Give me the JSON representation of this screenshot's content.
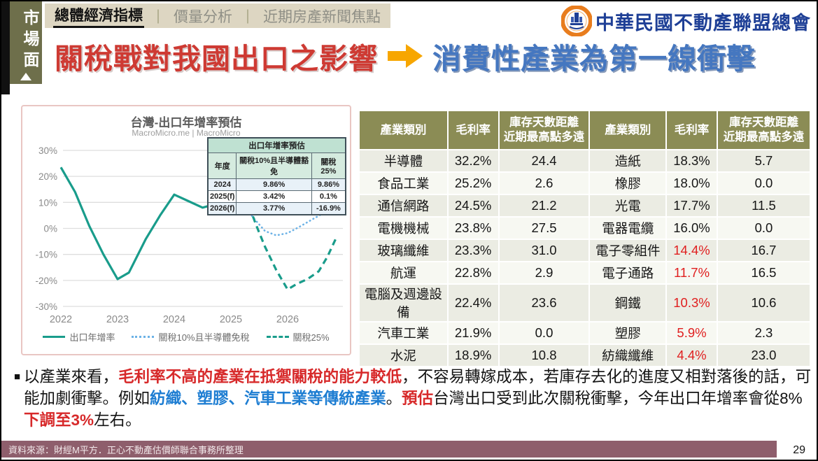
{
  "tab": {
    "label": "市場面"
  },
  "nav": {
    "separator": "｜",
    "items": [
      {
        "label": "總體經濟指標",
        "active": true
      },
      {
        "label": "價量分析",
        "active": false
      },
      {
        "label": "近期房產新聞焦點",
        "active": false
      }
    ]
  },
  "logo": {
    "org_name": "中華民國不動產聯盟總會"
  },
  "headline": {
    "left": "關稅戰對我國出口之影響",
    "right": "消費性產業為第一線衝擊"
  },
  "chart_data": {
    "type": "line",
    "title": "台灣-出口年增率預估",
    "subtitle": "MacroMicro.me | MacroMicro",
    "ylim": [
      -33,
      33
    ],
    "yticks": [
      30,
      20,
      10,
      0,
      -10,
      -20,
      -30
    ],
    "ytick_suffix": "%",
    "xticks": [
      2022,
      2023,
      2024,
      2025,
      2026
    ],
    "grid": true,
    "legend_position": "bottom",
    "series": [
      {
        "name": "出口年增率",
        "style": "solid",
        "color": "#199c8b",
        "x": [
          2022.0,
          2022.25,
          2022.5,
          2022.75,
          2023.0,
          2023.2,
          2023.5,
          2023.75,
          2024.0,
          2024.25,
          2024.5,
          2024.75,
          2025.0,
          2025.2
        ],
        "y": [
          23.5,
          14,
          1,
          -10,
          -19.5,
          -17,
          -4,
          5,
          13,
          10.5,
          8,
          9.5,
          10.5,
          10
        ]
      },
      {
        "name": "關稅10%且半導體免稅",
        "style": "dotted",
        "color": "#6cb2e6",
        "x": [
          2025.2,
          2025.4,
          2025.6,
          2025.8,
          2026.0,
          2026.2,
          2026.4,
          2026.6,
          2026.85
        ],
        "y": [
          9.5,
          4,
          -1,
          -2.7,
          -1.8,
          0.5,
          3,
          5.5,
          7
        ]
      },
      {
        "name": "關稅25%",
        "style": "dashed",
        "color": "#199c8b",
        "x": [
          2025.0,
          2025.15,
          2025.3,
          2025.45,
          2025.6,
          2025.8,
          2026.0,
          2026.15,
          2026.35,
          2026.55,
          2026.7,
          2026.85
        ],
        "y": [
          10.5,
          10.3,
          9.8,
          1,
          -7,
          -16,
          -23.5,
          -21.5,
          -19.5,
          -16.5,
          -11,
          -4
        ]
      }
    ],
    "annotation_table": {
      "title": "出口年增率預估",
      "headers": [
        "年度",
        "關稅10%且半導體豁免",
        "關稅25%"
      ],
      "rows": [
        [
          "2024",
          "9.86%",
          "9.86%"
        ],
        [
          "2025(f)",
          "3.42%",
          "0.1%"
        ],
        [
          "2026(f)",
          "3.77%",
          "-16.9%"
        ]
      ]
    }
  },
  "industry_table": {
    "headers": [
      "產業類別",
      "毛利率",
      "庫存天數距離\n近期最高點多遠",
      "產業類別",
      "毛利率",
      "庫存天數距離\n近期最高點多遠"
    ],
    "rows": [
      {
        "cells": [
          "半導體",
          "32.2%",
          "24.4",
          "造紙",
          "18.3%",
          "5.7"
        ],
        "red": []
      },
      {
        "cells": [
          "食品工業",
          "25.2%",
          "2.6",
          "橡膠",
          "18.0%",
          "0.0"
        ],
        "red": []
      },
      {
        "cells": [
          "通信網路",
          "24.5%",
          "21.2",
          "光電",
          "17.7%",
          "11.5"
        ],
        "red": []
      },
      {
        "cells": [
          "電機機械",
          "23.8%",
          "27.5",
          "電器電纜",
          "16.0%",
          "0.0"
        ],
        "red": []
      },
      {
        "cells": [
          "玻璃纖維",
          "23.3%",
          "31.0",
          "電子零組件",
          "14.4%",
          "16.7"
        ],
        "red": [
          4
        ]
      },
      {
        "cells": [
          "航運",
          "22.8%",
          "2.9",
          "電子通路",
          "11.7%",
          "16.5"
        ],
        "red": [
          4
        ]
      },
      {
        "cells": [
          "電腦及週邊設備",
          "22.4%",
          "23.6",
          "鋼鐵",
          "10.3%",
          "10.6"
        ],
        "red": [
          4
        ]
      },
      {
        "cells": [
          "汽車工業",
          "21.9%",
          "0.0",
          "塑膠",
          "5.9%",
          "2.3"
        ],
        "red": [
          4
        ]
      },
      {
        "cells": [
          "水泥",
          "18.9%",
          "10.8",
          "紡織纖維",
          "4.4%",
          "23.0"
        ],
        "red": [
          4
        ]
      }
    ]
  },
  "analysis": {
    "bullet": "■",
    "segments": [
      {
        "text": "以產業來看，",
        "style": "normal"
      },
      {
        "text": "毛利率不高的產業在抵禦關稅的能力較低",
        "style": "red"
      },
      {
        "text": "，不容易轉嫁成本，若庫存去化的進度又相對落後的話，可能加劇衝擊。例如",
        "style": "normal"
      },
      {
        "text": "紡織、塑膠、汽車工業等傳統產業",
        "style": "blue"
      },
      {
        "text": "。",
        "style": "normal"
      },
      {
        "text": "預估",
        "style": "red"
      },
      {
        "text": "台灣出口受到此次關稅衝擊，今年出口年增率會從8%",
        "style": "normal"
      },
      {
        "text": "下調至3%",
        "style": "red"
      },
      {
        "text": "左右。",
        "style": "normal"
      }
    ]
  },
  "footer": {
    "source": "資料來源：財經M平方．正心不動產估價師聯合事務所整理",
    "page": "29"
  },
  "colors": {
    "tab_olive": "#6e6f4b",
    "nav_beige": "#ddd6c2",
    "headline_red": "#ce3a33",
    "headline_blue": "#4577c0",
    "arrow_orange": "#f7a600",
    "table_header_olive": "#8b8c55",
    "chart_teal": "#199c8b",
    "chart_light_blue": "#6cb2e6",
    "footer_mauve": "#8e5e6c",
    "red_value": "#e01f1f"
  }
}
